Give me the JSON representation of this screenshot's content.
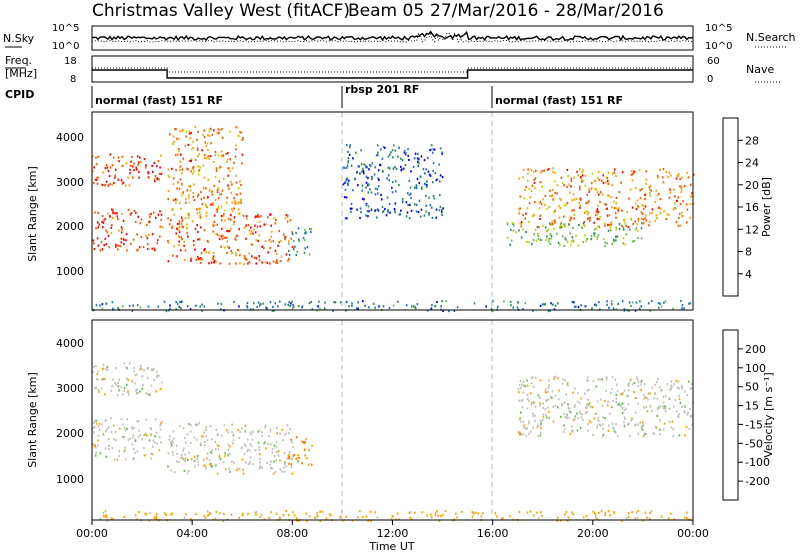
{
  "header": {
    "station": "Christmas Valley West (fitACF)",
    "beam": "Beam 05",
    "dates": "27/Mar/2016 - 28/Mar/2016"
  },
  "nsky_panel": {
    "left_label": "N.Sky",
    "left_ticks": [
      "10^5",
      "10^0"
    ],
    "right_label": "N.Search",
    "right_ticks": [
      "10^5",
      "10^0"
    ]
  },
  "freq_panel": {
    "left_label_1": "Freq.",
    "left_label_2": "[MHz]",
    "left_ticks": [
      "18",
      "8"
    ],
    "right_label": "Nave",
    "right_ticks": [
      "60",
      "0"
    ]
  },
  "cpid": {
    "label": "CPID",
    "segments": [
      {
        "name": "normal (fast) 151 RF",
        "start_hour": 0,
        "end_hour": 10
      },
      {
        "name": "rbsp 201 RF",
        "start_hour": 10,
        "end_hour": 16
      },
      {
        "name": "normal (fast) 151 RF",
        "start_hour": 16,
        "end_hour": 24
      }
    ]
  },
  "power_panel": {
    "ylabel": "Slant Range [km]",
    "yticks": [
      "4000",
      "3000",
      "2000",
      "1000"
    ],
    "colorbar_label": "Power [dB]",
    "colorbar_ticks": [
      "28",
      "24",
      "20",
      "16",
      "12",
      "8",
      "4"
    ],
    "colors": [
      "#0000ff",
      "#1f6fc0",
      "#2e8b57",
      "#66bb55",
      "#c8d400",
      "#ffa500",
      "#ff5500",
      "#ff0000"
    ]
  },
  "velocity_panel": {
    "ylabel": "Slant Range [km]",
    "yticks": [
      "4000",
      "3000",
      "2000",
      "1000"
    ],
    "colorbar_label": "Velocity [m s⁻¹]",
    "colorbar_ticks": [
      "200",
      "100",
      "50",
      "15",
      "-15",
      "-50",
      "-100",
      "-200"
    ],
    "colors": [
      "#0000cc",
      "#1f6fc0",
      "#2e8b57",
      "#66bb55",
      "#c0c0b8",
      "#ffa500",
      "#ff7700",
      "#ff3300",
      "#dd0000"
    ]
  },
  "xaxis": {
    "label": "Time UT",
    "ticks": [
      "00:00",
      "04:00",
      "08:00",
      "12:00",
      "16:00",
      "20:00",
      "00:00"
    ]
  },
  "chart_data": {
    "type": "heatmap",
    "title": "Christmas Valley West (fitACF)  Beam 05  27/Mar/2016 - 28/Mar/2016",
    "xlabel": "Time UT",
    "ylabel": "Slant Range [km]",
    "xlim_hours": [
      0,
      24
    ],
    "ylim_km": [
      180,
      4500
    ],
    "grid": false,
    "frequency_mhz": [
      {
        "start_hour": 0,
        "end_hour": 3,
        "value": 14
      },
      {
        "start_hour": 3,
        "end_hour": 15,
        "value": 10
      },
      {
        "start_hour": 15,
        "end_hour": 24,
        "value": 14
      }
    ],
    "power_echo_regions": [
      {
        "t_start": 0,
        "t_end": 2.8,
        "range_start": 2900,
        "range_end": 3600,
        "power_db": 28
      },
      {
        "t_start": 0,
        "t_end": 2.8,
        "range_start": 1500,
        "range_end": 2400,
        "power_db": 28
      },
      {
        "t_start": 3,
        "t_end": 8,
        "range_start": 1200,
        "range_end": 2300,
        "power_db": 26
      },
      {
        "t_start": 3,
        "t_end": 6,
        "range_start": 2300,
        "range_end": 4200,
        "power_db": 24
      },
      {
        "t_start": 7.8,
        "t_end": 8.8,
        "range_start": 1400,
        "range_end": 2000,
        "power_db": 10
      },
      {
        "t_start": 10,
        "t_end": 14,
        "range_start": 2200,
        "range_end": 3800,
        "power_db": 6
      },
      {
        "t_start": 17,
        "t_end": 24,
        "range_start": 2000,
        "range_end": 3300,
        "power_db": 24
      },
      {
        "t_start": 16.5,
        "t_end": 22,
        "range_start": 1600,
        "range_end": 2100,
        "power_db": 14
      },
      {
        "t_start": 0,
        "t_end": 24,
        "range_start": 180,
        "range_end": 400,
        "power_db": 8
      }
    ],
    "velocity_echo_regions": [
      {
        "t_start": 0,
        "t_end": 2.8,
        "range_start": 2900,
        "range_end": 3600,
        "velocity": 0
      },
      {
        "t_start": 0,
        "t_end": 2.8,
        "range_start": 1500,
        "range_end": 2400,
        "velocity": 0
      },
      {
        "t_start": 3,
        "t_end": 8,
        "range_start": 1200,
        "range_end": 2300,
        "velocity": 0
      },
      {
        "t_start": 7.8,
        "t_end": 8.8,
        "range_start": 1300,
        "range_end": 2000,
        "velocity": -50
      },
      {
        "t_start": 17,
        "t_end": 24,
        "range_start": 2000,
        "range_end": 3300,
        "velocity": 0
      },
      {
        "t_start": 0,
        "t_end": 24,
        "range_start": 180,
        "range_end": 400,
        "velocity": -30
      }
    ]
  }
}
